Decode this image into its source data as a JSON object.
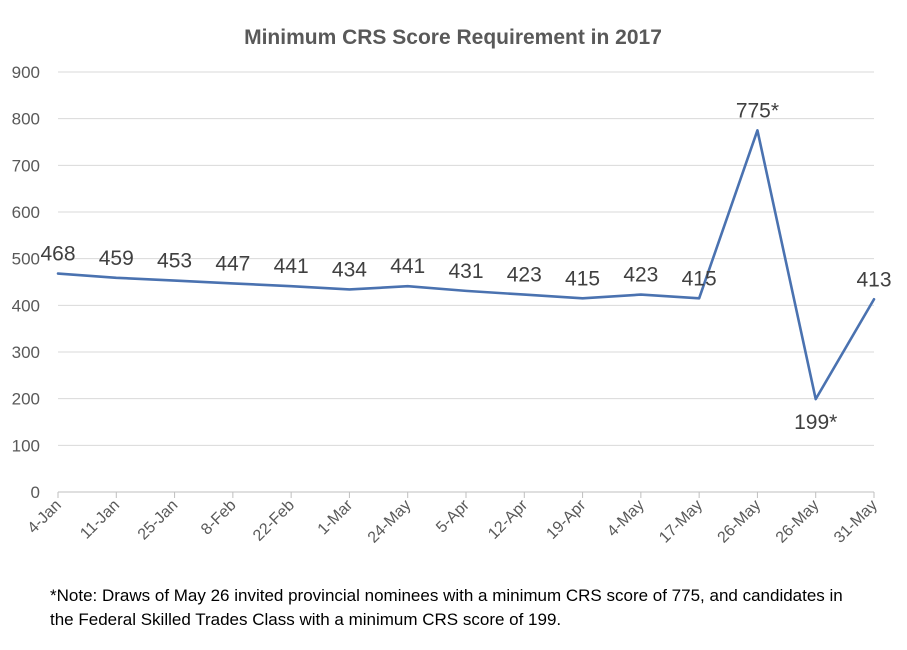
{
  "chart_data": {
    "type": "line",
    "title": "Minimum CRS Score Requirement in 2017",
    "xlabel": "",
    "ylabel": "",
    "ylim": [
      0,
      900
    ],
    "yticks": [
      0,
      100,
      200,
      300,
      400,
      500,
      600,
      700,
      800,
      900
    ],
    "categories": [
      "4-Jan",
      "11-Jan",
      "25-Jan",
      "8-Feb",
      "22-Feb",
      "1-Mar",
      "24-May",
      "5-Apr",
      "12-Apr",
      "19-Apr",
      "4-May",
      "17-May",
      "26-May",
      "26-May",
      "31-May"
    ],
    "series": [
      {
        "name": "Minimum CRS score",
        "color": "#4a72b0",
        "values": [
          468,
          459,
          453,
          447,
          441,
          434,
          441,
          431,
          423,
          415,
          423,
          415,
          775,
          199,
          413
        ],
        "labels": [
          "468",
          "459",
          "453",
          "447",
          "441",
          "434",
          "441",
          "431",
          "423",
          "415",
          "423",
          "415",
          "775*",
          "199*",
          "413"
        ]
      }
    ],
    "grid": true,
    "legend": "none"
  },
  "note": {
    "text": "*Note: Draws of May 26 invited provincial nominees with a minimum CRS score of 775, and candidates in the Federal Skilled Trades Class with a minimum CRS score of 199."
  }
}
